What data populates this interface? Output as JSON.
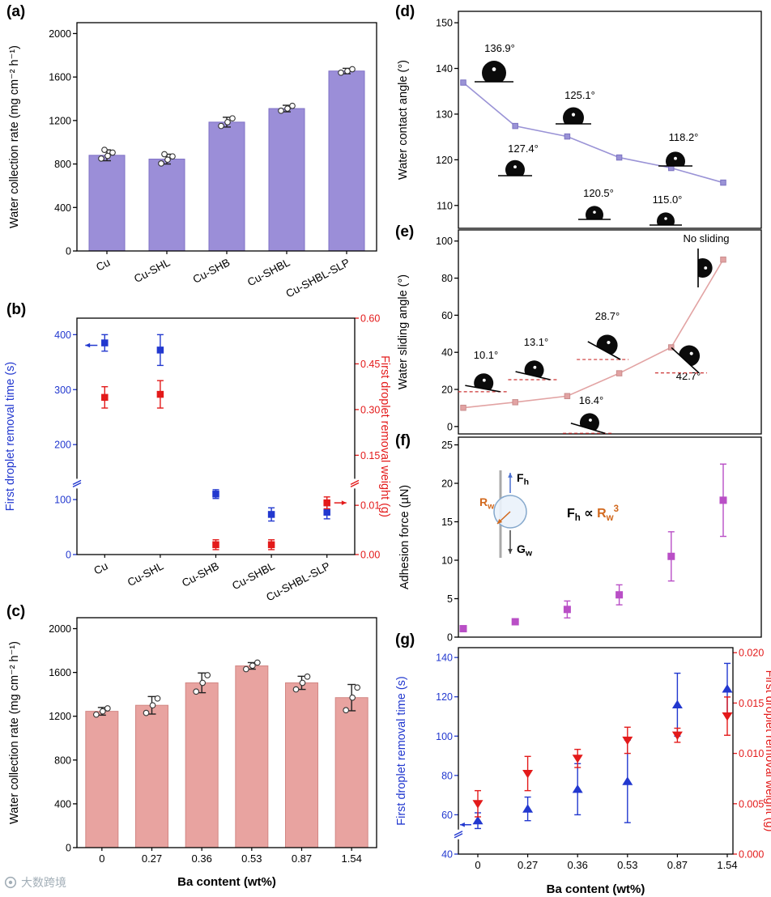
{
  "watermark": {
    "text": "大数跨境"
  },
  "chart_data": [
    {
      "panel": "a",
      "panel_label": "(a)",
      "type": "bar",
      "ylabel": "Water collection rate (mg cm⁻² h⁻¹)",
      "categories": [
        "Cu",
        "Cu-SHL",
        "Cu-SHB",
        "Cu-SHBL",
        "Cu-SHBL-SLP"
      ],
      "values": [
        880,
        845,
        1185,
        1310,
        1655
      ],
      "errors": [
        50,
        45,
        45,
        30,
        25
      ],
      "replicates": [
        [
          850,
          875,
          905,
          930
        ],
        [
          805,
          840,
          870,
          890
        ],
        [
          1150,
          1185,
          1220
        ],
        [
          1290,
          1310,
          1335
        ],
        [
          1640,
          1655,
          1672
        ]
      ],
      "ylim": [
        0,
        2100
      ],
      "yticks": [
        0,
        400,
        800,
        1200,
        1600,
        2000
      ],
      "grid": false,
      "colors": {
        "bar": "#9b8ed8",
        "bar_edge": "#7f71c6",
        "error": "#222222"
      }
    },
    {
      "panel": "b",
      "panel_label": "(b)",
      "type": "dual-scatter",
      "categories": [
        "Cu",
        "Cu-SHL",
        "Cu-SHB",
        "Cu-SHBL",
        "Cu-SHBL-SLP"
      ],
      "left": {
        "label": "First droplet removal time (s)",
        "color": "#2238cf",
        "values": [
          385,
          372,
          110,
          73,
          77
        ],
        "errors": [
          15,
          28,
          8,
          12,
          12
        ],
        "lim": [
          0,
          430
        ],
        "ticks": [
          0,
          100,
          200,
          300,
          400
        ],
        "axis_break": 129
      },
      "right": {
        "label": "First droplet removal weight (g)",
        "color": "#e31a1a",
        "values": [
          0.34,
          0.35,
          0.002,
          0.002,
          0.0105
        ],
        "errors": [
          0.035,
          0.045,
          0.001,
          0.001,
          0.0012
        ],
        "break_low": 0.012,
        "ticks_lower": [
          {
            "v": 0,
            "label": "0.00"
          },
          {
            "v": 0.01,
            "label": "0.01"
          }
        ],
        "ticks_upper": [
          {
            "v": 0.15,
            "label": "0.15"
          },
          {
            "v": 0.3,
            "label": "0.30"
          },
          {
            "v": 0.45,
            "label": "0.45"
          },
          {
            "v": 0.6,
            "label": "0.60"
          }
        ]
      },
      "arrows": {
        "left_at": 0,
        "right_at": 4
      }
    },
    {
      "panel": "c",
      "panel_label": "(c)",
      "type": "bar",
      "ylabel": "Water collection rate (mg cm⁻² h⁻¹)",
      "xlabel": "Ba content (wt%)",
      "categories": [
        "0",
        "0.27",
        "0.36",
        "0.53",
        "0.87",
        "1.54"
      ],
      "values": [
        1245,
        1300,
        1505,
        1660,
        1505,
        1370
      ],
      "errors": [
        35,
        80,
        90,
        30,
        60,
        120
      ],
      "replicates": [
        [
          1215,
          1245,
          1272
        ],
        [
          1230,
          1300,
          1362
        ],
        [
          1425,
          1505,
          1575
        ],
        [
          1630,
          1662,
          1690
        ],
        [
          1445,
          1505,
          1562
        ],
        [
          1255,
          1370,
          1462
        ]
      ],
      "ylim": [
        0,
        2100
      ],
      "yticks": [
        0,
        400,
        800,
        1200,
        1600,
        2000
      ],
      "grid": false,
      "colors": {
        "bar": "#e8a3a0",
        "bar_edge": "#d28784",
        "error": "#222222"
      }
    },
    {
      "panel": "d",
      "panel_label": "(d)",
      "type": "line",
      "ylabel": "Water contact angle (°)",
      "x": [
        "0",
        "0.27",
        "0.36",
        "0.53",
        "0.87",
        "1.54"
      ],
      "values": [
        136.9,
        127.4,
        125.1,
        120.5,
        118.2,
        115.0
      ],
      "ylim": [
        105,
        152.5
      ],
      "yticks": [
        110,
        120,
        130,
        140,
        150
      ],
      "color": "#9a93d6",
      "marker_edge": "#7b72c2",
      "annotations": [
        {
          "label": "136.9°",
          "angle": 136.9
        },
        {
          "label": "127.4°",
          "angle": 127.4
        },
        {
          "label": "125.1°",
          "angle": 125.1
        },
        {
          "label": "120.5°",
          "angle": 120.5
        },
        {
          "label": "118.2°",
          "angle": 118.2
        },
        {
          "label": "115.0°",
          "angle": 115.0
        }
      ]
    },
    {
      "panel": "e",
      "panel_label": "(e)",
      "type": "line",
      "ylabel": "Water sliding angle (°)",
      "x": [
        "0",
        "0.27",
        "0.36",
        "0.53",
        "0.87",
        "1.54"
      ],
      "values": [
        10.1,
        13.1,
        16.4,
        28.7,
        42.7,
        90
      ],
      "ylim": [
        -4,
        106
      ],
      "yticks": [
        0,
        20,
        40,
        60,
        80,
        100
      ],
      "color": "#e2a3a3",
      "marker_edge": "#c98c8c",
      "annotations": [
        {
          "label": "10.1°",
          "angle": 10.1
        },
        {
          "label": "13.1°",
          "angle": 13.1
        },
        {
          "label": "16.4°",
          "angle": 16.4
        },
        {
          "label": "28.7°",
          "angle": 28.7
        },
        {
          "label": "42.7°",
          "angle": 42.7
        },
        {
          "label": "No sliding",
          "angle": 90
        }
      ]
    },
    {
      "panel": "f",
      "panel_label": "(f)",
      "type": "scatter",
      "ylabel": "Adhesion force (µN)",
      "x": [
        "0",
        "0.27",
        "0.36",
        "0.53",
        "0.87",
        "1.54"
      ],
      "values": [
        1.1,
        2.0,
        3.6,
        5.5,
        10.5,
        17.8
      ],
      "errors": [
        0.25,
        0.35,
        1.1,
        1.3,
        3.2,
        4.7
      ],
      "ylim": [
        0,
        26
      ],
      "yticks": [
        0,
        5,
        10,
        15,
        20,
        25
      ],
      "color": "#b94fc6",
      "inset": {
        "fh": {
          "main": "F",
          "sub": "h"
        },
        "gw": {
          "main": "G",
          "sub": "w"
        },
        "rw": {
          "main": "R",
          "sub": "w"
        },
        "prop": "∝",
        "exp": "3",
        "accent": "#d2691e",
        "droplet_stroke": "#85a8cc"
      }
    },
    {
      "panel": "g",
      "panel_label": "(g)",
      "type": "dual-scatter-triangle",
      "xlabel": "Ba content (wt%)",
      "categories": [
        "0",
        "0.27",
        "0.36",
        "0.53",
        "0.87",
        "1.54"
      ],
      "left": {
        "label": "First droplet removal time (s)",
        "color": "#2238cf",
        "values": [
          57,
          63,
          73,
          77,
          116,
          124
        ],
        "errors": [
          4,
          6,
          13,
          21,
          16,
          13
        ],
        "lim": [
          40,
          145
        ],
        "ticks": [
          40,
          60,
          80,
          100,
          120,
          140
        ],
        "axis_break": 50
      },
      "right": {
        "label": "First droplet removal weight (g)",
        "color": "#e31a1a",
        "values": [
          0.005,
          0.008,
          0.0095,
          0.0113,
          0.0118,
          0.0137
        ],
        "errors": [
          0.0013,
          0.0017,
          0.0009,
          0.0013,
          0.0007,
          0.0019
        ],
        "lim": [
          0,
          0.0205
        ],
        "ticks": [
          0,
          0.005,
          0.01,
          0.015,
          0.02
        ]
      },
      "arrows": {
        "left_at": 0
      }
    }
  ]
}
